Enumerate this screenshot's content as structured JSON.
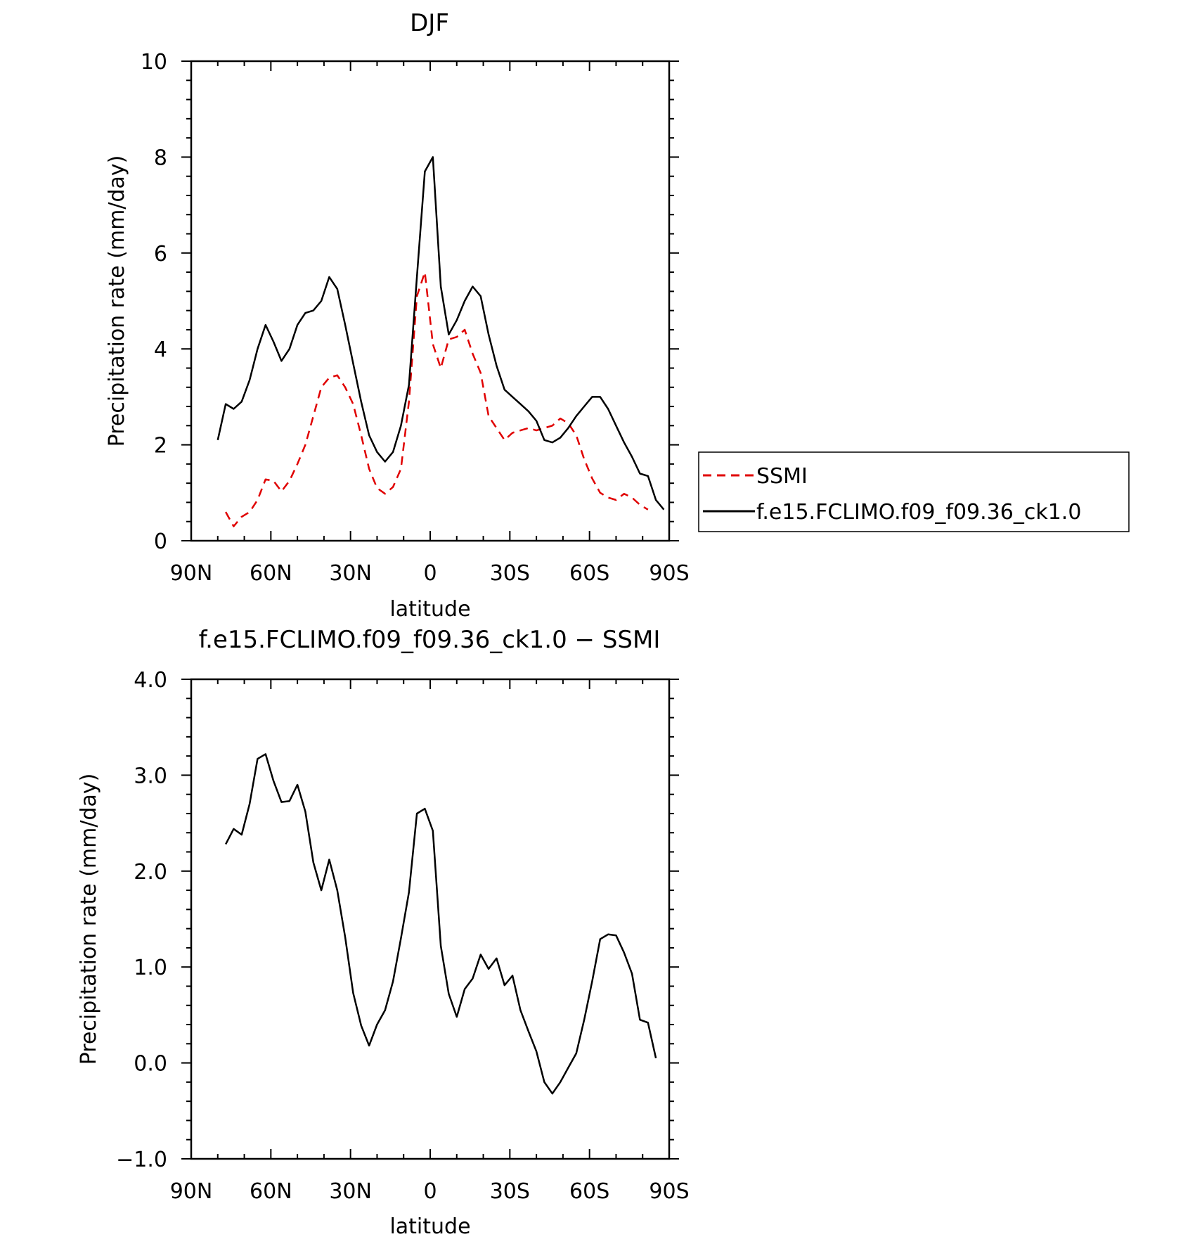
{
  "chart_data": [
    {
      "type": "line",
      "title": "DJF",
      "xlabel": "latitude",
      "ylabel": "Precipitation rate (mm/day)",
      "xlim": [
        90,
        -90
      ],
      "ylim": [
        0,
        10
      ],
      "xticks": [
        90,
        60,
        30,
        0,
        -30,
        -60,
        -90
      ],
      "xtick_labels": [
        "90N",
        "60N",
        "30N",
        "0",
        "30S",
        "60S",
        "90S"
      ],
      "yticks": [
        0,
        2,
        4,
        6,
        8,
        10
      ],
      "ytick_labels": [
        "0",
        "2",
        "4",
        "6",
        "8",
        "10"
      ],
      "legend": {
        "position": "right",
        "entries": [
          "SSMI",
          "f.e15.FCLIMO.f09_f09.36_ck1.0"
        ]
      },
      "series": [
        {
          "name": "SSMI",
          "color": "#e00000",
          "style": "dashed",
          "points": [
            [
              77,
              0.6
            ],
            [
              74,
              0.3
            ],
            [
              71,
              0.5
            ],
            [
              68,
              0.6
            ],
            [
              65,
              0.85
            ],
            [
              62,
              1.28
            ],
            [
              59,
              1.25
            ],
            [
              56,
              1.03
            ],
            [
              53,
              1.25
            ],
            [
              50,
              1.6
            ],
            [
              47,
              2.0
            ],
            [
              44,
              2.6
            ],
            [
              41,
              3.2
            ],
            [
              38,
              3.4
            ],
            [
              35,
              3.45
            ],
            [
              32,
              3.2
            ],
            [
              29,
              2.85
            ],
            [
              26,
              2.2
            ],
            [
              23,
              1.5
            ],
            [
              20,
              1.1
            ],
            [
              17,
              0.98
            ],
            [
              14,
              1.12
            ],
            [
              11,
              1.5
            ],
            [
              8,
              2.9
            ],
            [
              5,
              5.1
            ],
            [
              2,
              5.6
            ],
            [
              -1,
              4.1
            ],
            [
              -4,
              3.6
            ],
            [
              -7,
              4.2
            ],
            [
              -10,
              4.25
            ],
            [
              -13,
              4.4
            ],
            [
              -16,
              3.9
            ],
            [
              -19,
              3.5
            ],
            [
              -22,
              2.6
            ],
            [
              -25,
              2.35
            ],
            [
              -28,
              2.1
            ],
            [
              -31,
              2.25
            ],
            [
              -34,
              2.3
            ],
            [
              -37,
              2.35
            ],
            [
              -40,
              2.3
            ],
            [
              -43,
              2.35
            ],
            [
              -46,
              2.4
            ],
            [
              -49,
              2.55
            ],
            [
              -52,
              2.45
            ],
            [
              -55,
              2.2
            ],
            [
              -58,
              1.7
            ],
            [
              -61,
              1.3
            ],
            [
              -64,
              1.0
            ],
            [
              -67,
              0.9
            ],
            [
              -70,
              0.85
            ],
            [
              -73,
              0.98
            ],
            [
              -76,
              0.9
            ],
            [
              -79,
              0.75
            ],
            [
              -82,
              0.65
            ]
          ]
        },
        {
          "name": "f.e15.FCLIMO.f09_f09.36_ck1.0",
          "color": "#000000",
          "style": "solid",
          "points": [
            [
              80,
              2.1
            ],
            [
              77,
              2.85
            ],
            [
              74,
              2.75
            ],
            [
              71,
              2.9
            ],
            [
              68,
              3.35
            ],
            [
              65,
              4.0
            ],
            [
              62,
              4.5
            ],
            [
              59,
              4.15
            ],
            [
              56,
              3.75
            ],
            [
              53,
              4.0
            ],
            [
              50,
              4.5
            ],
            [
              47,
              4.75
            ],
            [
              44,
              4.8
            ],
            [
              41,
              5.0
            ],
            [
              38,
              5.5
            ],
            [
              35,
              5.25
            ],
            [
              32,
              4.5
            ],
            [
              29,
              3.7
            ],
            [
              26,
              2.9
            ],
            [
              23,
              2.2
            ],
            [
              20,
              1.85
            ],
            [
              17,
              1.65
            ],
            [
              14,
              1.85
            ],
            [
              11,
              2.4
            ],
            [
              8,
              3.25
            ],
            [
              5,
              5.5
            ],
            [
              2,
              7.7
            ],
            [
              -1,
              8.0
            ],
            [
              -4,
              5.3
            ],
            [
              -7,
              4.3
            ],
            [
              -10,
              4.6
            ],
            [
              -13,
              5.0
            ],
            [
              -16,
              5.3
            ],
            [
              -19,
              5.1
            ],
            [
              -22,
              4.3
            ],
            [
              -25,
              3.65
            ],
            [
              -28,
              3.15
            ],
            [
              -31,
              3.0
            ],
            [
              -34,
              2.85
            ],
            [
              -37,
              2.7
            ],
            [
              -40,
              2.5
            ],
            [
              -43,
              2.1
            ],
            [
              -46,
              2.05
            ],
            [
              -49,
              2.15
            ],
            [
              -52,
              2.35
            ],
            [
              -55,
              2.6
            ],
            [
              -58,
              2.8
            ],
            [
              -61,
              3.0
            ],
            [
              -64,
              3.0
            ],
            [
              -67,
              2.75
            ],
            [
              -70,
              2.4
            ],
            [
              -73,
              2.05
            ],
            [
              -76,
              1.75
            ],
            [
              -79,
              1.4
            ],
            [
              -82,
              1.35
            ],
            [
              -85,
              0.85
            ],
            [
              -88,
              0.65
            ]
          ]
        }
      ]
    },
    {
      "type": "line",
      "title": "f.e15.FCLIMO.f09_f09.36_ck1.0 − SSMI",
      "xlabel": "latitude",
      "ylabel": "Precipitation rate (mm/day)",
      "xlim": [
        90,
        -90
      ],
      "ylim": [
        -1.0,
        4.0
      ],
      "xticks": [
        90,
        60,
        30,
        0,
        -30,
        -60,
        -90
      ],
      "xtick_labels": [
        "90N",
        "60N",
        "30N",
        "0",
        "30S",
        "60S",
        "90S"
      ],
      "yticks": [
        -1.0,
        0.0,
        1.0,
        2.0,
        3.0,
        4.0
      ],
      "ytick_labels": [
        "−1.0",
        "0.0",
        "1.0",
        "2.0",
        "3.0",
        "4.0"
      ],
      "series": [
        {
          "name": "f.e15.FCLIMO.f09_f09.36_ck1.0 − SSMI",
          "color": "#000000",
          "style": "solid",
          "points": [
            [
              77,
              2.28
            ],
            [
              74,
              2.44
            ],
            [
              71,
              2.38
            ],
            [
              68,
              2.7
            ],
            [
              65,
              3.17
            ],
            [
              62,
              3.22
            ],
            [
              59,
              2.94
            ],
            [
              56,
              2.72
            ],
            [
              53,
              2.73
            ],
            [
              50,
              2.9
            ],
            [
              47,
              2.62
            ],
            [
              44,
              2.09
            ],
            [
              41,
              1.8
            ],
            [
              38,
              2.12
            ],
            [
              35,
              1.8
            ],
            [
              32,
              1.31
            ],
            [
              29,
              0.73
            ],
            [
              26,
              0.39
            ],
            [
              23,
              0.18
            ],
            [
              20,
              0.4
            ],
            [
              17,
              0.55
            ],
            [
              14,
              0.85
            ],
            [
              11,
              1.3
            ],
            [
              8,
              1.78
            ],
            [
              5,
              2.6
            ],
            [
              2,
              2.65
            ],
            [
              -1,
              2.42
            ],
            [
              -4,
              1.22
            ],
            [
              -7,
              0.72
            ],
            [
              -10,
              0.48
            ],
            [
              -13,
              0.77
            ],
            [
              -16,
              0.88
            ],
            [
              -19,
              1.13
            ],
            [
              -22,
              0.98
            ],
            [
              -25,
              1.09
            ],
            [
              -28,
              0.81
            ],
            [
              -31,
              0.91
            ],
            [
              -34,
              0.55
            ],
            [
              -37,
              0.33
            ],
            [
              -40,
              0.12
            ],
            [
              -43,
              -0.2
            ],
            [
              -46,
              -0.32
            ],
            [
              -49,
              -0.2
            ],
            [
              -52,
              -0.05
            ],
            [
              -55,
              0.1
            ],
            [
              -58,
              0.45
            ],
            [
              -61,
              0.85
            ],
            [
              -64,
              1.29
            ],
            [
              -67,
              1.34
            ],
            [
              -70,
              1.33
            ],
            [
              -73,
              1.15
            ],
            [
              -76,
              0.93
            ],
            [
              -79,
              0.45
            ],
            [
              -82,
              0.42
            ],
            [
              -85,
              0.05
            ]
          ]
        }
      ]
    }
  ]
}
